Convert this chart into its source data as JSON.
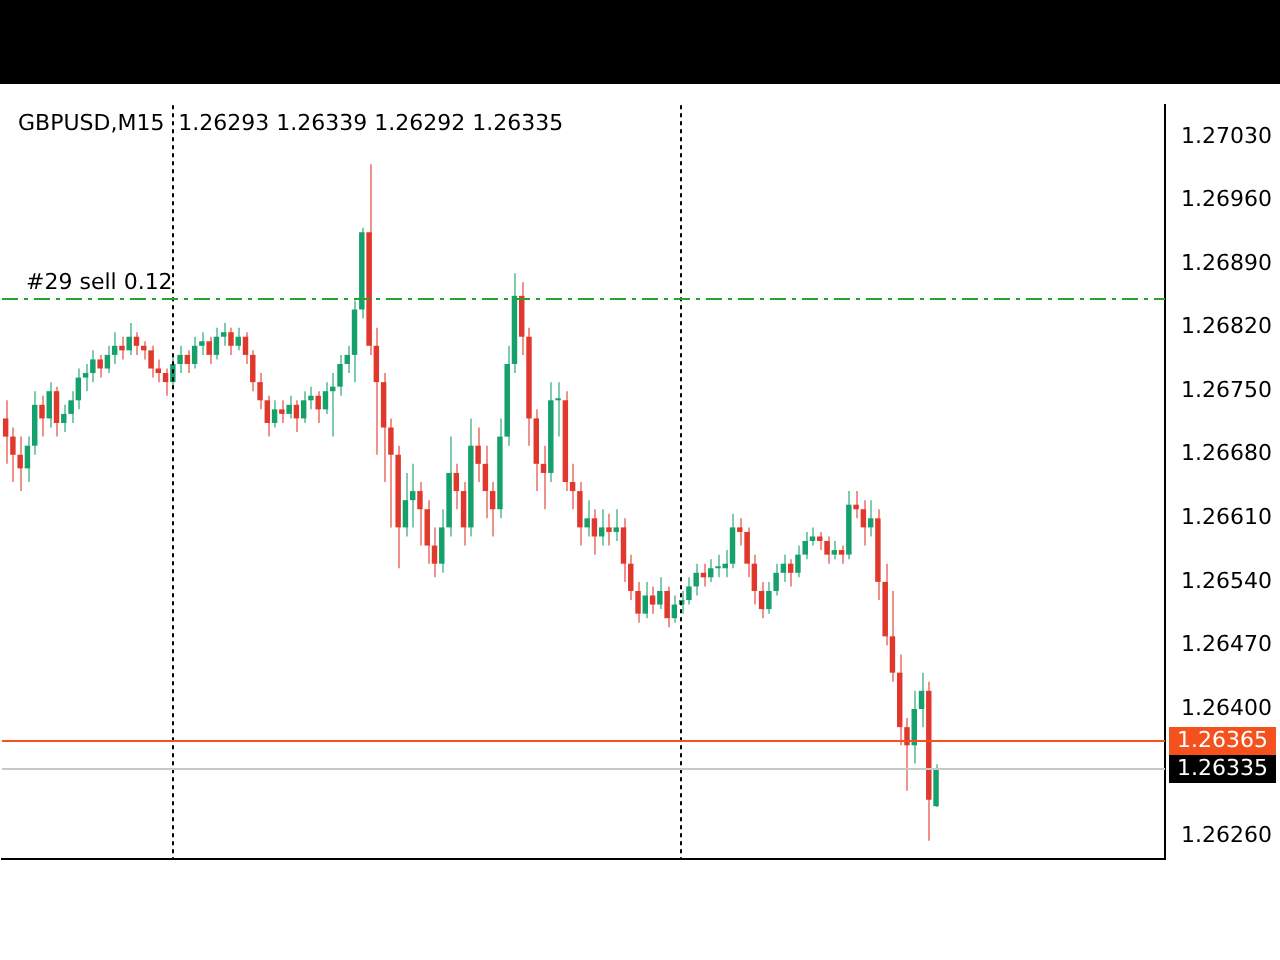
{
  "chart_data": {
    "type": "candlestick",
    "title": "GBPUSD,M15  1.26293 1.26339 1.26292 1.26335",
    "categories": [
      null,
      null,
      null,
      null,
      null,
      null,
      null,
      null,
      null,
      null,
      null,
      null,
      null,
      null,
      null,
      null,
      null,
      null,
      null,
      null,
      null,
      null,
      null,
      null,
      null,
      null,
      null,
      null,
      null,
      null,
      null,
      null,
      null,
      null,
      null,
      null,
      null,
      null,
      null,
      null,
      null,
      null,
      null,
      null,
      null,
      null,
      null,
      null,
      null,
      null,
      null,
      null,
      null,
      null,
      null,
      null,
      null,
      null,
      null,
      null,
      null,
      null,
      null,
      null,
      null,
      null,
      null,
      null,
      null,
      null,
      null,
      null,
      null,
      null,
      null,
      null,
      null,
      null,
      null,
      null,
      null,
      null,
      null,
      null,
      null,
      null,
      null,
      null,
      null,
      null,
      null,
      null,
      null,
      null,
      null,
      null,
      null,
      null,
      null,
      null,
      null,
      null,
      null,
      null,
      null,
      null,
      null,
      null,
      null,
      null,
      null,
      null,
      null,
      null,
      null,
      null,
      null,
      null,
      null,
      null,
      null,
      null,
      null,
      null,
      null,
      null,
      null,
      null,
      null,
      null,
      null,
      null,
      null,
      null,
      null,
      null,
      null,
      null,
      null,
      null,
      null,
      null,
      null,
      null,
      null,
      null,
      null,
      null,
      null,
      null,
      null,
      null,
      null,
      null,
      null,
      null,
      null,
      null,
      null,
      null
    ],
    "ohlc": [
      [
        1.2672,
        1.2674,
        1.2667,
        1.267
      ],
      [
        1.267,
        1.2671,
        1.2665,
        1.2668
      ],
      [
        1.2668,
        1.267,
        1.2664,
        1.26665
      ],
      [
        1.26665,
        1.267,
        1.2665,
        1.2669
      ],
      [
        1.2669,
        1.2675,
        1.2668,
        1.26735
      ],
      [
        1.26735,
        1.26745,
        1.267,
        1.2672
      ],
      [
        1.2672,
        1.2676,
        1.2671,
        1.2675
      ],
      [
        1.2675,
        1.26755,
        1.267,
        1.26715
      ],
      [
        1.26715,
        1.26735,
        1.26705,
        1.26725
      ],
      [
        1.26725,
        1.2675,
        1.26715,
        1.2674
      ],
      [
        1.2674,
        1.26775,
        1.2673,
        1.26765
      ],
      [
        1.26765,
        1.2678,
        1.2675,
        1.2677
      ],
      [
        1.2677,
        1.26795,
        1.2676,
        1.26785
      ],
      [
        1.26785,
        1.2679,
        1.26765,
        1.26775
      ],
      [
        1.26775,
        1.268,
        1.2677,
        1.2679
      ],
      [
        1.2679,
        1.26815,
        1.2678,
        1.268
      ],
      [
        1.268,
        1.2681,
        1.26785,
        1.26795
      ],
      [
        1.26795,
        1.26825,
        1.2679,
        1.2681
      ],
      [
        1.2681,
        1.26815,
        1.2679,
        1.268
      ],
      [
        1.268,
        1.26805,
        1.26785,
        1.26795
      ],
      [
        1.26795,
        1.268,
        1.26765,
        1.26775
      ],
      [
        1.26775,
        1.26785,
        1.2676,
        1.2677
      ],
      [
        1.2677,
        1.26775,
        1.26745,
        1.2676
      ],
      [
        1.2676,
        1.2679,
        1.26755,
        1.2678
      ],
      [
        1.2678,
        1.268,
        1.2677,
        1.2679
      ],
      [
        1.2679,
        1.26795,
        1.2677,
        1.2678
      ],
      [
        1.2678,
        1.2681,
        1.26775,
        1.268
      ],
      [
        1.268,
        1.26815,
        1.2679,
        1.26805
      ],
      [
        1.26805,
        1.2681,
        1.2678,
        1.2679
      ],
      [
        1.2679,
        1.2682,
        1.26785,
        1.2681
      ],
      [
        1.2681,
        1.26825,
        1.268,
        1.26815
      ],
      [
        1.26815,
        1.2682,
        1.2679,
        1.268
      ],
      [
        1.268,
        1.2682,
        1.26795,
        1.2681
      ],
      [
        1.2681,
        1.26815,
        1.2678,
        1.2679
      ],
      [
        1.2679,
        1.26795,
        1.2675,
        1.2676
      ],
      [
        1.2676,
        1.2677,
        1.2673,
        1.2674
      ],
      [
        1.2674,
        1.26745,
        1.267,
        1.26715
      ],
      [
        1.26715,
        1.2674,
        1.2671,
        1.2673
      ],
      [
        1.2673,
        1.2674,
        1.26715,
        1.26725
      ],
      [
        1.26725,
        1.26745,
        1.2672,
        1.26735
      ],
      [
        1.26735,
        1.2674,
        1.26705,
        1.2672
      ],
      [
        1.2672,
        1.2675,
        1.26715,
        1.2674
      ],
      [
        1.2674,
        1.26755,
        1.2673,
        1.26745
      ],
      [
        1.26745,
        1.2675,
        1.26715,
        1.2673
      ],
      [
        1.2673,
        1.2676,
        1.26725,
        1.2675
      ],
      [
        1.2675,
        1.2677,
        1.267,
        1.26755
      ],
      [
        1.26755,
        1.2679,
        1.26745,
        1.2678
      ],
      [
        1.2678,
        1.268,
        1.2677,
        1.2679
      ],
      [
        1.2679,
        1.2685,
        1.2676,
        1.2684
      ],
      [
        1.2684,
        1.2693,
        1.2683,
        1.26925
      ],
      [
        1.26925,
        1.27,
        1.2679,
        1.268
      ],
      [
        1.268,
        1.2682,
        1.2668,
        1.2676
      ],
      [
        1.2676,
        1.2677,
        1.2665,
        1.2671
      ],
      [
        1.2671,
        1.2672,
        1.266,
        1.2668
      ],
      [
        1.2668,
        1.2669,
        1.26555,
        1.266
      ],
      [
        1.266,
        1.2666,
        1.2659,
        1.2663
      ],
      [
        1.2663,
        1.2667,
        1.266,
        1.2664
      ],
      [
        1.2664,
        1.2665,
        1.2658,
        1.2662
      ],
      [
        1.2662,
        1.2663,
        1.2656,
        1.2658
      ],
      [
        1.2658,
        1.266,
        1.26545,
        1.2656
      ],
      [
        1.2656,
        1.2662,
        1.2655,
        1.266
      ],
      [
        1.266,
        1.267,
        1.2659,
        1.2666
      ],
      [
        1.2666,
        1.2667,
        1.2662,
        1.2664
      ],
      [
        1.2664,
        1.2665,
        1.2658,
        1.266
      ],
      [
        1.266,
        1.2672,
        1.2659,
        1.2669
      ],
      [
        1.2669,
        1.2671,
        1.2665,
        1.2667
      ],
      [
        1.2667,
        1.2669,
        1.2661,
        1.2664
      ],
      [
        1.2664,
        1.2665,
        1.2659,
        1.2662
      ],
      [
        1.2662,
        1.2672,
        1.2661,
        1.267
      ],
      [
        1.267,
        1.268,
        1.2669,
        1.2678
      ],
      [
        1.2678,
        1.2688,
        1.2677,
        1.26855
      ],
      [
        1.26855,
        1.2687,
        1.2679,
        1.2681
      ],
      [
        1.2681,
        1.2682,
        1.2669,
        1.2672
      ],
      [
        1.2672,
        1.2673,
        1.2664,
        1.2667
      ],
      [
        1.2667,
        1.2669,
        1.2662,
        1.2666
      ],
      [
        1.2666,
        1.2676,
        1.2665,
        1.2674
      ],
      [
        1.2674,
        1.2676,
        1.267,
        1.2674
      ],
      [
        1.2674,
        1.2675,
        1.2664,
        1.2665
      ],
      [
        1.2665,
        1.2667,
        1.2662,
        1.2664
      ],
      [
        1.2664,
        1.2665,
        1.2658,
        1.266
      ],
      [
        1.266,
        1.2663,
        1.2659,
        1.2661
      ],
      [
        1.2661,
        1.2662,
        1.2657,
        1.2659
      ],
      [
        1.2659,
        1.2662,
        1.2658,
        1.266
      ],
      [
        1.266,
        1.26615,
        1.2658,
        1.26595
      ],
      [
        1.26595,
        1.2662,
        1.26585,
        1.266
      ],
      [
        1.266,
        1.2661,
        1.2654,
        1.2656
      ],
      [
        1.2656,
        1.2657,
        1.2652,
        1.2653
      ],
      [
        1.2653,
        1.2654,
        1.26495,
        1.26505
      ],
      [
        1.26505,
        1.2654,
        1.265,
        1.26525
      ],
      [
        1.26525,
        1.26535,
        1.26505,
        1.26515
      ],
      [
        1.26515,
        1.26545,
        1.2651,
        1.2653
      ],
      [
        1.2653,
        1.26535,
        1.2649,
        1.265
      ],
      [
        1.265,
        1.26525,
        1.26495,
        1.26515
      ],
      [
        1.26515,
        1.2653,
        1.26505,
        1.2652
      ],
      [
        1.2652,
        1.26545,
        1.26515,
        1.26535
      ],
      [
        1.26535,
        1.2656,
        1.26525,
        1.2655
      ],
      [
        1.2655,
        1.2656,
        1.26535,
        1.26545
      ],
      [
        1.26545,
        1.26565,
        1.2654,
        1.26555
      ],
      [
        1.26555,
        1.2657,
        1.26545,
        1.26555
      ],
      [
        1.26555,
        1.26575,
        1.26545,
        1.2656
      ],
      [
        1.2656,
        1.26615,
        1.26555,
        1.266
      ],
      [
        1.266,
        1.2661,
        1.2658,
        1.26595
      ],
      [
        1.26595,
        1.266,
        1.26545,
        1.2656
      ],
      [
        1.2656,
        1.2657,
        1.26515,
        1.2653
      ],
      [
        1.2653,
        1.2654,
        1.265,
        1.2651
      ],
      [
        1.2651,
        1.2654,
        1.26505,
        1.2653
      ],
      [
        1.2653,
        1.2656,
        1.26525,
        1.2655
      ],
      [
        1.2655,
        1.2657,
        1.2654,
        1.2656
      ],
      [
        1.2656,
        1.26565,
        1.26535,
        1.2655
      ],
      [
        1.2655,
        1.2658,
        1.26545,
        1.2657
      ],
      [
        1.2657,
        1.26595,
        1.26565,
        1.26585
      ],
      [
        1.26585,
        1.266,
        1.2658,
        1.2659
      ],
      [
        1.2659,
        1.26595,
        1.26575,
        1.26585
      ],
      [
        1.26585,
        1.2659,
        1.2656,
        1.2657
      ],
      [
        1.2657,
        1.26585,
        1.26565,
        1.26575
      ],
      [
        1.26575,
        1.2658,
        1.2656,
        1.2657
      ],
      [
        1.2657,
        1.2664,
        1.26565,
        1.26625
      ],
      [
        1.26625,
        1.2664,
        1.2661,
        1.2662
      ],
      [
        1.2662,
        1.2663,
        1.2658,
        1.266
      ],
      [
        1.266,
        1.2663,
        1.2659,
        1.2661
      ],
      [
        1.2661,
        1.2662,
        1.2652,
        1.2654
      ],
      [
        1.2654,
        1.2656,
        1.2647,
        1.2648
      ],
      [
        1.2648,
        1.2653,
        1.2643,
        1.2644
      ],
      [
        1.2644,
        1.2646,
        1.2636,
        1.2638
      ],
      [
        1.2638,
        1.2639,
        1.2631,
        1.2636
      ],
      [
        1.2636,
        1.2642,
        1.2634,
        1.264
      ],
      [
        1.264,
        1.2644,
        1.2638,
        1.2642
      ],
      [
        1.2642,
        1.2643,
        1.26255,
        1.263
      ],
      [
        1.26293,
        1.26339,
        1.26292,
        1.26335
      ],
      null,
      null,
      null,
      null,
      null,
      null,
      null,
      null,
      null,
      null,
      null,
      null,
      null,
      null,
      null,
      null,
      null,
      null,
      null,
      null,
      null,
      null,
      null,
      null,
      null,
      null,
      null,
      null,
      null,
      null,
      null
    ],
    "ylim": [
      1.26235,
      1.27065
    ],
    "yticks": [
      {
        "value": 1.2626,
        "label": "1.26260"
      },
      {
        "value": 1.264,
        "label": "1.26400"
      },
      {
        "value": 1.2647,
        "label": "1.26470"
      },
      {
        "value": 1.2654,
        "label": "1.26540"
      },
      {
        "value": 1.2661,
        "label": "1.26610"
      },
      {
        "value": 1.2668,
        "label": "1.26680"
      },
      {
        "value": 1.2675,
        "label": "1.26750"
      },
      {
        "value": 1.2682,
        "label": "1.26820"
      },
      {
        "value": 1.2689,
        "label": "1.26890"
      },
      {
        "value": 1.2696,
        "label": "1.26960"
      },
      {
        "value": 1.2703,
        "label": "1.27030"
      }
    ],
    "ref_lines": [
      {
        "axis": "y",
        "value": 1.26852,
        "label": "#29 sell 0.12",
        "color": "#2ca02c",
        "line_style": "dashed"
      },
      {
        "axis": "y",
        "value": 1.26365,
        "label": "1.26365",
        "color": "#f4511e",
        "line_style": "solid"
      },
      {
        "axis": "y",
        "value": 1.26335,
        "label": "1.26335",
        "color": "#c8c8c8",
        "line_style": "solid"
      }
    ],
    "tick_labels": "y",
    "grid": false,
    "legend": false
  }
}
